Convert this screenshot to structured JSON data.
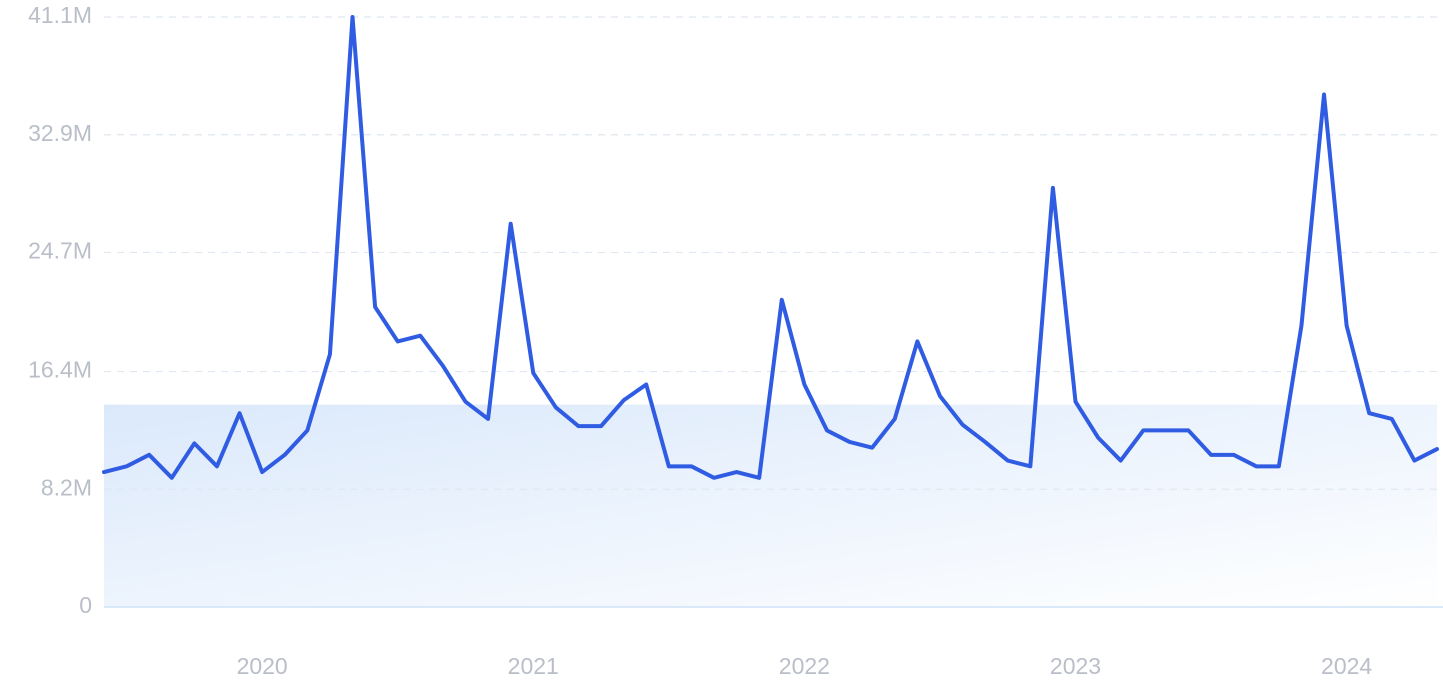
{
  "chart_data": {
    "type": "line",
    "categories": [
      null,
      null,
      null,
      null,
      null,
      null,
      null,
      "2020",
      null,
      null,
      null,
      null,
      null,
      null,
      null,
      null,
      null,
      null,
      null,
      "2021",
      null,
      null,
      null,
      null,
      null,
      null,
      null,
      null,
      null,
      null,
      null,
      "2022",
      null,
      null,
      null,
      null,
      null,
      null,
      null,
      null,
      null,
      null,
      null,
      "2023",
      null,
      null,
      null,
      null,
      null,
      null,
      null,
      null,
      null,
      null,
      null,
      "2024",
      null,
      null,
      null,
      null
    ],
    "series": [
      {
        "color": "#2f5ce2",
        "values": [
          9.4,
          9.8,
          10.6,
          9.0,
          11.4,
          9.8,
          13.5,
          9.4,
          10.6,
          12.3,
          17.6,
          41.1,
          20.9,
          18.5,
          18.9,
          16.8,
          14.3,
          13.1,
          26.7,
          16.3,
          13.9,
          12.6,
          12.6,
          14.4,
          15.5,
          9.8,
          9.8,
          9.0,
          9.4,
          9.0,
          21.4,
          15.5,
          12.3,
          11.5,
          11.1,
          13.1,
          18.5,
          14.7,
          12.7,
          11.5,
          10.2,
          9.8,
          29.2,
          14.3,
          11.8,
          10.2,
          12.3,
          12.3,
          12.3,
          10.6,
          10.6,
          9.8,
          9.8,
          19.6,
          35.7,
          19.6,
          13.5,
          13.1,
          10.2,
          11.0
        ]
      }
    ],
    "shaded_range": [
      0,
      14.1
    ],
    "ylim": [
      0,
      41.1
    ],
    "yticks": [
      0,
      {
        "value": 8.2,
        "label": "8.2M"
      },
      {
        "value": 16.4,
        "label": "16.4M"
      },
      {
        "value": 24.7,
        "label": "24.7M"
      },
      {
        "value": 32.9,
        "label": "32.9M"
      },
      {
        "value": 41.1,
        "label": "41.1M"
      }
    ],
    "grid": true
  }
}
